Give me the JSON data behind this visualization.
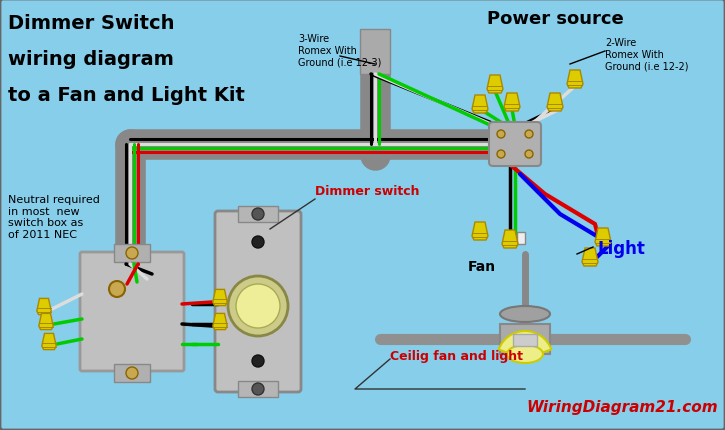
{
  "bg_color": "#87CEEB",
  "title_lines": [
    "Dimmer Switch",
    "wiring diagram",
    "to a Fan and Light Kit"
  ],
  "title_color": "#000000",
  "power_source_label": "Power source",
  "wire_3_label": "3-Wire\nRomex With\nGround (i.e 12-3)",
  "wire_2_label": "2-Wire\nRomex With\nGround (i.e 12-2)",
  "neutral_label": "Neutral required\nin most  new\nswitch box as\nof 2011 NEC",
  "dimmer_switch_label": "Dimmer switch",
  "fan_label": "Fan",
  "light_label": "Light",
  "ceiling_fan_label": "Ceilig fan and light",
  "website_label": "WiringDiagram21.com",
  "website_color": "#CC0000",
  "dimmer_label_color": "#CC0000",
  "fan_label_color": "#000000",
  "light_label_color": "#0000EE",
  "ceiling_fan_label_color": "#CC0000",
  "black_wire": "#000000",
  "white_wire": "#dddddd",
  "green_wire": "#00cc00",
  "red_wire": "#dd0000",
  "blue_wire": "#0000ee",
  "conduit_color": "#888888",
  "box_color": "#bbbbbb",
  "wirenut_color": "#ddcc00",
  "wirenut_edge": "#aa8800"
}
